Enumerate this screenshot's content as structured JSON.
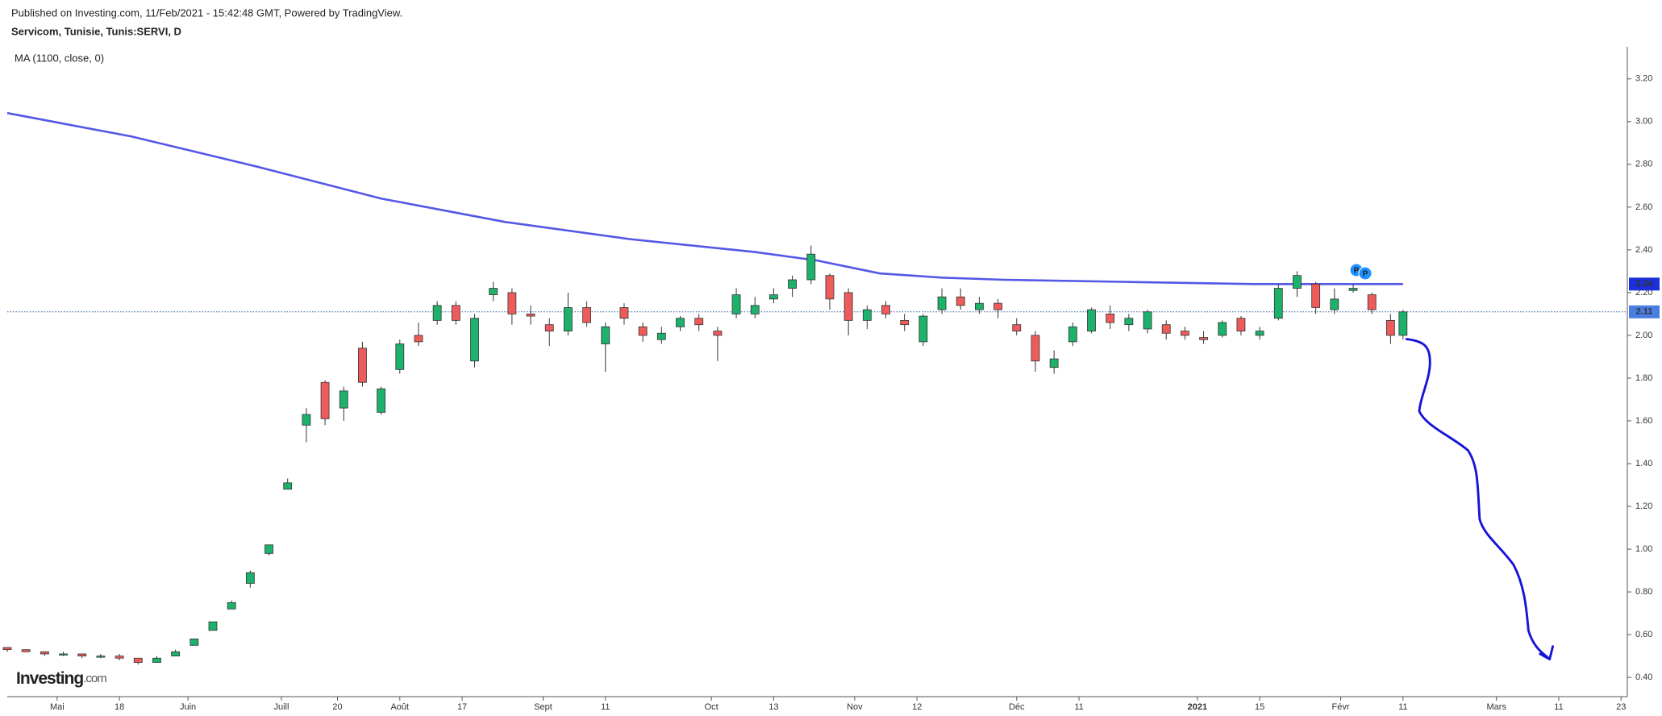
{
  "header": {
    "published": "Published on Investing.com, 11/Feb/2021 - 15:42:48 GMT, Powered by TradingView.",
    "symbol": "Servicom, Tunisie, Tunis:SERVI, D"
  },
  "logo": {
    "name": "Investing",
    "suffix": ".com"
  },
  "chart_data": {
    "type": "candlestick",
    "up_color": "#1db16b",
    "down_color": "#ee5b5b",
    "x": [
      0,
      3,
      6,
      9,
      12,
      15,
      18,
      21,
      24,
      27,
      30,
      33,
      36,
      39,
      42,
      45,
      48,
      51,
      54,
      57,
      60,
      63,
      66,
      69,
      72,
      75,
      78,
      81,
      84,
      87,
      90,
      93,
      96,
      99,
      102,
      105,
      108,
      111,
      114,
      117,
      120,
      123,
      126,
      129,
      132,
      135,
      138,
      141,
      144,
      147,
      150,
      153,
      156,
      159,
      162,
      165,
      168,
      171,
      174,
      177,
      180,
      183,
      186,
      189,
      192,
      195,
      198,
      201,
      204,
      207,
      210,
      213,
      216,
      219,
      222,
      224
    ],
    "open": [
      0.54,
      0.53,
      0.52,
      0.51,
      0.51,
      0.5,
      0.5,
      0.49,
      0.47,
      0.5,
      0.55,
      0.62,
      0.72,
      0.84,
      0.98,
      1.28,
      1.58,
      1.78,
      1.66,
      1.94,
      1.64,
      1.84,
      2.0,
      2.07,
      2.14,
      1.88,
      2.19,
      2.2,
      2.1,
      2.05,
      2.02,
      2.13,
      1.96,
      2.13,
      2.04,
      1.98,
      2.04,
      2.08,
      2.02,
      2.1,
      2.1,
      2.17,
      2.22,
      2.26,
      2.28,
      2.2,
      2.07,
      2.14,
      2.07,
      1.97,
      2.12,
      2.18,
      2.12,
      2.15,
      2.05,
      2.0,
      1.85,
      1.97,
      2.02,
      2.1,
      2.05,
      2.03,
      2.05,
      2.02,
      1.99,
      2.0,
      2.08,
      2.0,
      2.08,
      2.22,
      2.24,
      2.12,
      2.21,
      2.19,
      2.07,
      2.0
    ],
    "high": [
      0.54,
      0.53,
      0.52,
      0.52,
      0.51,
      0.51,
      0.51,
      0.49,
      0.5,
      0.53,
      0.58,
      0.66,
      0.76,
      0.9,
      1.02,
      1.33,
      1.66,
      1.79,
      1.76,
      1.97,
      1.76,
      1.98,
      2.06,
      2.16,
      2.16,
      2.1,
      2.25,
      2.22,
      2.14,
      2.08,
      2.2,
      2.16,
      2.06,
      2.15,
      2.06,
      2.04,
      2.09,
      2.1,
      2.04,
      2.22,
      2.18,
      2.22,
      2.28,
      2.42,
      2.29,
      2.22,
      2.14,
      2.16,
      2.1,
      2.1,
      2.22,
      2.22,
      2.18,
      2.17,
      2.08,
      2.02,
      1.93,
      2.06,
      2.13,
      2.14,
      2.1,
      2.12,
      2.07,
      2.04,
      2.02,
      2.07,
      2.09,
      2.04,
      2.24,
      2.3,
      2.25,
      2.22,
      2.24,
      2.2,
      2.1,
      2.12
    ],
    "low": [
      0.52,
      0.52,
      0.5,
      0.5,
      0.49,
      0.49,
      0.48,
      0.46,
      0.47,
      0.5,
      0.55,
      0.62,
      0.72,
      0.82,
      0.97,
      1.28,
      1.5,
      1.58,
      1.6,
      1.76,
      1.63,
      1.82,
      1.95,
      2.05,
      2.05,
      1.85,
      2.16,
      2.05,
      2.05,
      1.95,
      2.0,
      2.04,
      1.83,
      2.05,
      1.97,
      1.96,
      2.02,
      2.02,
      1.88,
      2.08,
      2.08,
      2.15,
      2.18,
      2.24,
      2.12,
      2.0,
      2.03,
      2.08,
      2.02,
      1.95,
      2.1,
      2.12,
      2.1,
      2.08,
      2.0,
      1.83,
      1.82,
      1.95,
      2.01,
      2.03,
      2.02,
      2.01,
      1.98,
      1.98,
      1.96,
      1.99,
      2.0,
      1.98,
      2.07,
      2.18,
      2.1,
      2.1,
      2.2,
      2.1,
      1.96,
      1.98
    ],
    "close": [
      0.53,
      0.52,
      0.51,
      0.51,
      0.5,
      0.5,
      0.49,
      0.47,
      0.49,
      0.52,
      0.58,
      0.66,
      0.75,
      0.89,
      1.02,
      1.31,
      1.63,
      1.61,
      1.74,
      1.78,
      1.75,
      1.96,
      1.97,
      2.14,
      2.07,
      2.08,
      2.22,
      2.1,
      2.09,
      2.02,
      2.13,
      2.06,
      2.04,
      2.08,
      2.0,
      2.01,
      2.08,
      2.05,
      2.0,
      2.19,
      2.14,
      2.19,
      2.26,
      2.38,
      2.17,
      2.07,
      2.12,
      2.1,
      2.05,
      2.09,
      2.18,
      2.14,
      2.15,
      2.12,
      2.02,
      1.88,
      1.89,
      2.04,
      2.12,
      2.06,
      2.08,
      2.11,
      2.01,
      2.0,
      1.98,
      2.06,
      2.02,
      2.02,
      2.22,
      2.28,
      2.13,
      2.17,
      2.22,
      2.12,
      2.0,
      2.11
    ],
    "series": [
      {
        "name": "MA (1100, close, 0)",
        "color": "#5457e6",
        "x": [
          0,
          20,
          40,
          60,
          80,
          100,
          120,
          130,
          140,
          150,
          160,
          180,
          200,
          224
        ],
        "values": [
          3.04,
          2.93,
          2.79,
          2.64,
          2.53,
          2.45,
          2.39,
          2.35,
          2.29,
          2.27,
          2.26,
          2.25,
          2.24,
          2.24
        ]
      }
    ],
    "annotations": [
      "P",
      "P"
    ],
    "xlim": [
      0,
      260
    ],
    "xticks": [
      {
        "value": 8,
        "label": "Mai"
      },
      {
        "value": 18,
        "label": "18"
      },
      {
        "value": 29,
        "label": "Juin"
      },
      {
        "value": 44,
        "label": "Juill"
      },
      {
        "value": 53,
        "label": "20"
      },
      {
        "value": 63,
        "label": "Août"
      },
      {
        "value": 73,
        "label": "17"
      },
      {
        "value": 86,
        "label": "Sept"
      },
      {
        "value": 96,
        "label": "11"
      },
      {
        "value": 113,
        "label": "Oct"
      },
      {
        "value": 123,
        "label": "13"
      },
      {
        "value": 136,
        "label": "Nov"
      },
      {
        "value": 146,
        "label": "12"
      },
      {
        "value": 162,
        "label": "Déc"
      },
      {
        "value": 172,
        "label": "11"
      },
      {
        "value": 191,
        "label": "2021"
      },
      {
        "value": 201,
        "label": "15"
      },
      {
        "value": 214,
        "label": "Févr"
      },
      {
        "value": 224,
        "label": "11"
      },
      {
        "value": 239,
        "label": "Mars"
      },
      {
        "value": 249,
        "label": "11"
      },
      {
        "value": 259,
        "label": "23"
      }
    ],
    "ylim": [
      0.31,
      3.35
    ],
    "yticks": [
      {
        "value": 0.4,
        "label": "0.40"
      },
      {
        "value": 0.6,
        "label": "0.60"
      },
      {
        "value": 0.8,
        "label": "0.80"
      },
      {
        "value": 1.0,
        "label": "1.00"
      },
      {
        "value": 1.2,
        "label": "1.20"
      },
      {
        "value": 1.4,
        "label": "1.40"
      },
      {
        "value": 1.6,
        "label": "1.60"
      },
      {
        "value": 1.8,
        "label": "1.80"
      },
      {
        "value": 2.0,
        "label": "2.00"
      },
      {
        "value": 2.2,
        "label": "2.20"
      },
      {
        "value": 2.4,
        "label": "2.40"
      },
      {
        "value": 2.6,
        "label": "2.60"
      },
      {
        "value": 2.8,
        "label": "2.80"
      },
      {
        "value": 3.0,
        "label": "3.00"
      },
      {
        "value": 3.2,
        "label": "3.20"
      }
    ]
  }
}
